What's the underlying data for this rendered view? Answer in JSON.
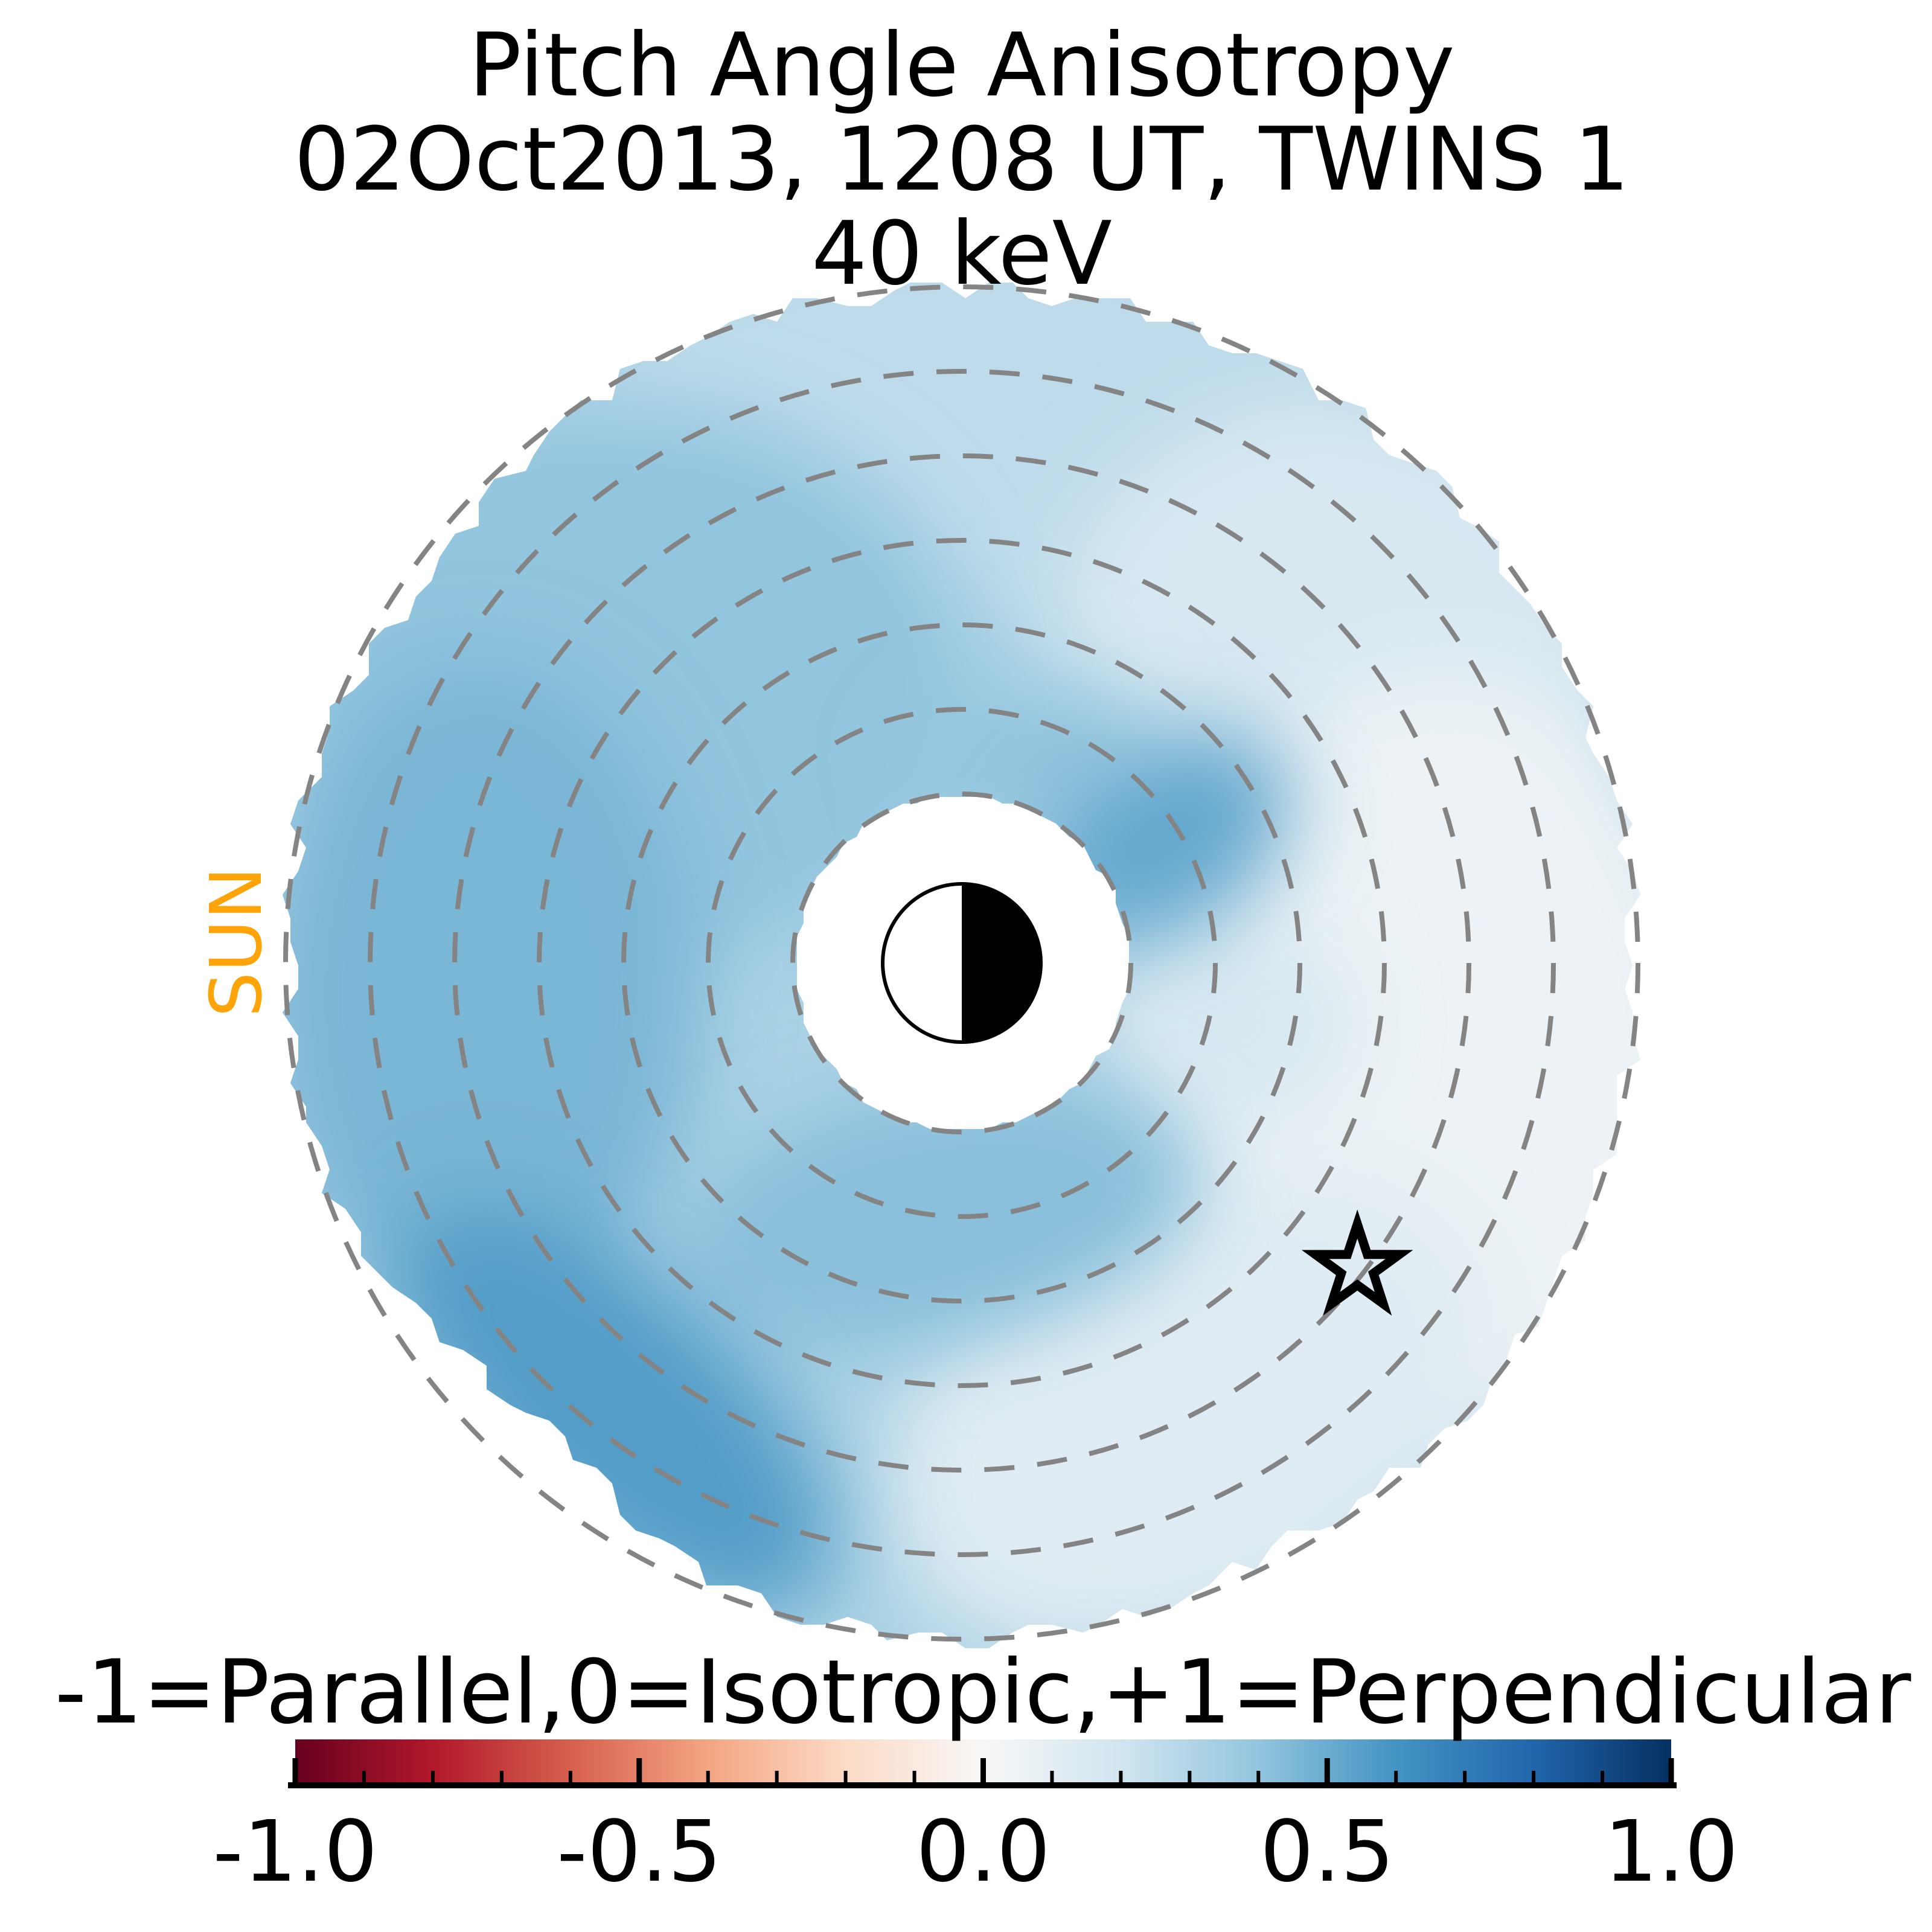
{
  "figure": {
    "title_line1": "Pitch Angle Anisotropy",
    "title_line2": "02Oct2013, 1208 UT,  TWINS 1",
    "title_line3": "40 keV",
    "sun_label": "SUN",
    "colorbar_label": "-1=Parallel,0=Isotropic,+1=Perpendicular"
  },
  "colors": {
    "background": "#ffffff",
    "sun_label": "#ffa408",
    "grid_dash": "#848484",
    "line_black": "#000000"
  },
  "chart_data": {
    "type": "heatmap",
    "projection": "polar",
    "quantity": "pitch angle anisotropy",
    "energy": "40 keV",
    "timestamp": "02Oct2013 1208 UT",
    "instrument": "TWINS 1",
    "value_scale": {
      "min": -1,
      "max": 1,
      "meaning": {
        "-1": "Parallel",
        "0": "Isotropic",
        "+1": "Perpendicular"
      }
    },
    "colormap": {
      "name": "RdBu",
      "anchors": {
        "values": [
          -1.0,
          -0.8,
          -0.6,
          -0.4,
          -0.2,
          0.0,
          0.2,
          0.4,
          0.6,
          0.8,
          1.0
        ],
        "colors": [
          "#67001f",
          "#b2182b",
          "#d6604d",
          "#f4a582",
          "#fddbc7",
          "#f7f7f7",
          "#d1e5f0",
          "#92c5de",
          "#4393c3",
          "#2166ac",
          "#053061"
        ]
      }
    },
    "colorbar": {
      "orientation": "horizontal",
      "tick_labels": [
        "-1.0",
        "-0.5",
        "0.0",
        "0.5",
        "1.0"
      ],
      "tick_values": [
        -1,
        -0.5,
        0,
        0.5,
        1
      ],
      "minor_tick_step": 0.1
    },
    "grid_rings_re": [
      2,
      3,
      4,
      5,
      6,
      7,
      8
    ],
    "data_annulus_re": {
      "inner": 2,
      "outer": 8
    },
    "sun_direction": "left",
    "earth": {
      "dayside": "left",
      "nightside": "right"
    },
    "star_marker_position_re": {
      "x": 4.68,
      "y": 3.61
    },
    "base_value": 0.32,
    "regions": [
      {
        "name": "top-outer-light",
        "cx": 0.2,
        "cy": -6.4,
        "rx": 4.8,
        "ry": 2.3,
        "rot": 0,
        "value": 0.26
      },
      {
        "name": "upper-right-light",
        "cx": 4.4,
        "cy": -3.5,
        "rx": 3.4,
        "ry": 3.2,
        "rot": 0,
        "value": 0.17
      },
      {
        "name": "right-light",
        "cx": 5.7,
        "cy": 1.1,
        "rx": 3.3,
        "ry": 4.6,
        "rot": 0,
        "value": 0.06
      },
      {
        "name": "lower-right-light",
        "cx": 2.7,
        "cy": 5.3,
        "rx": 3.8,
        "ry": 2.6,
        "rot": -27,
        "value": 0.12
      },
      {
        "name": "east-inner-light",
        "cx": 3.1,
        "cy": 0.7,
        "rx": 1.5,
        "ry": 1.2,
        "rot": 0,
        "value": 0.17
      },
      {
        "name": "upper-left-medium",
        "cx": -3.9,
        "cy": -3.3,
        "rx": 4.0,
        "ry": 3.3,
        "rot": 0,
        "value": 0.4
      },
      {
        "name": "west-medium",
        "cx": -5.7,
        "cy": 0.4,
        "rx": 2.6,
        "ry": 4.0,
        "rot": 0,
        "value": 0.46
      },
      {
        "name": "inner-south-medium",
        "cx": -0.3,
        "cy": 3.0,
        "rx": 3.1,
        "ry": 1.5,
        "rot": -10,
        "value": 0.42
      },
      {
        "name": "north-inner-medium",
        "cx": 0.8,
        "cy": -2.5,
        "rx": 1.4,
        "ry": 0.8,
        "rot": -15,
        "value": 0.4
      },
      {
        "name": "east-swirl-blob",
        "cx": 2.4,
        "cy": -1.5,
        "rx": 1.6,
        "ry": 1.1,
        "rot": -30,
        "value": 0.52
      },
      {
        "name": "southwest-dark-arc",
        "cx": -4.1,
        "cy": 5.3,
        "rx": 3.2,
        "ry": 1.5,
        "rot": 42,
        "value": 0.56
      }
    ]
  }
}
